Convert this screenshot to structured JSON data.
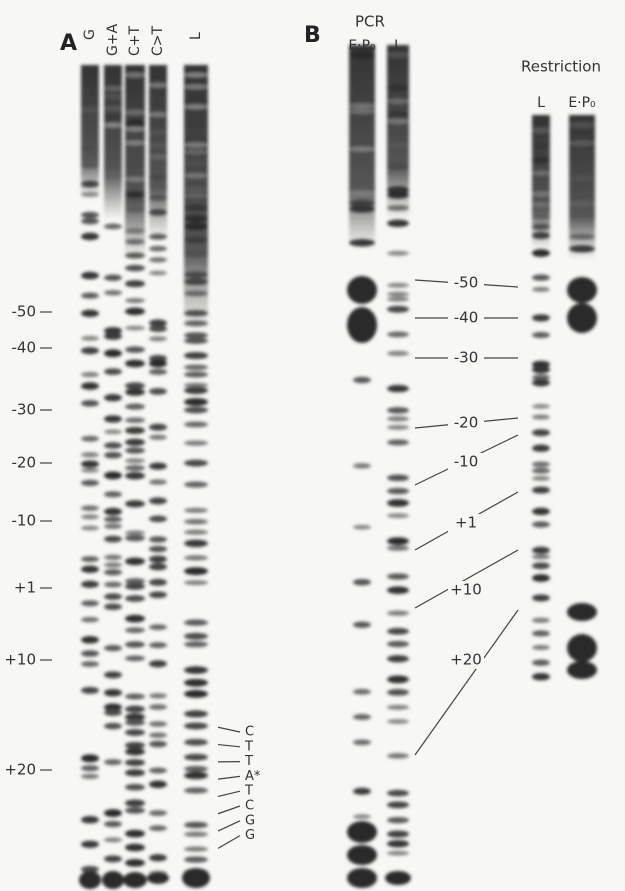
{
  "panel_a": {
    "label": "A",
    "lanes": [
      "G",
      "G+A",
      "C+T",
      "C>T",
      "L"
    ],
    "positions": [
      "-50",
      "-40",
      "-30",
      "-20",
      "-10",
      "+1",
      "+10",
      "+20"
    ],
    "sequence": [
      "C",
      "T",
      "T",
      "A*",
      "T",
      "C",
      "G",
      "G"
    ]
  },
  "panel_b": {
    "label": "B",
    "pcr": {
      "title": "PCR",
      "lanes": [
        "E·P₀",
        "L"
      ]
    },
    "restriction": {
      "title": "Restriction",
      "lanes": [
        "L",
        "E·P₀"
      ]
    },
    "positions": [
      "-50",
      "-40",
      "-30",
      "-20",
      "-10",
      "+1",
      "+10",
      "+20"
    ]
  }
}
